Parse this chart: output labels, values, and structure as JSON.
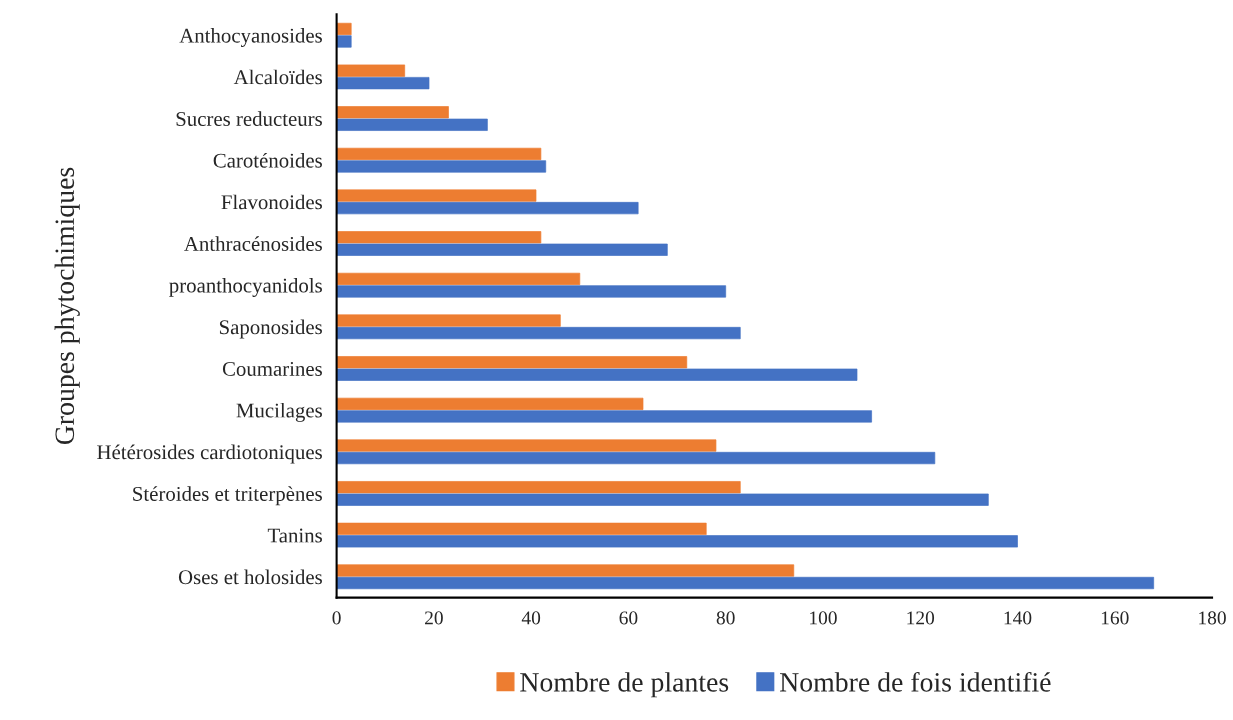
{
  "chart_data": {
    "type": "bar",
    "orientation": "horizontal",
    "ylabel": "Groupes phytochimiques",
    "categories": [
      "Anthocyanosides",
      "Alcaloïdes",
      "Sucres reducteurs",
      "Caroténoides",
      "Flavonoides",
      "Anthracénosides",
      "proanthocyanidols",
      "Saponosides",
      "Coumarines",
      "Mucilages",
      "Hétérosides cardiotoniques",
      "Stéroides et triterpènes",
      "Tanins",
      "Oses et holosides"
    ],
    "series": [
      {
        "name": "Nombre de plantes",
        "color": "#ed7d31",
        "values": [
          3,
          14,
          23,
          42,
          41,
          42,
          50,
          46,
          72,
          63,
          78,
          83,
          76,
          94
        ]
      },
      {
        "name": "Nombre de fois identifié",
        "color": "#4472c4",
        "values": [
          3,
          19,
          31,
          43,
          62,
          68,
          80,
          83,
          107,
          110,
          123,
          134,
          140,
          168
        ]
      }
    ],
    "xlim": [
      0,
      180
    ],
    "xticks": [
      0,
      20,
      40,
      60,
      80,
      100,
      120,
      140,
      160,
      180
    ],
    "grid": false,
    "legend": "bottom"
  }
}
